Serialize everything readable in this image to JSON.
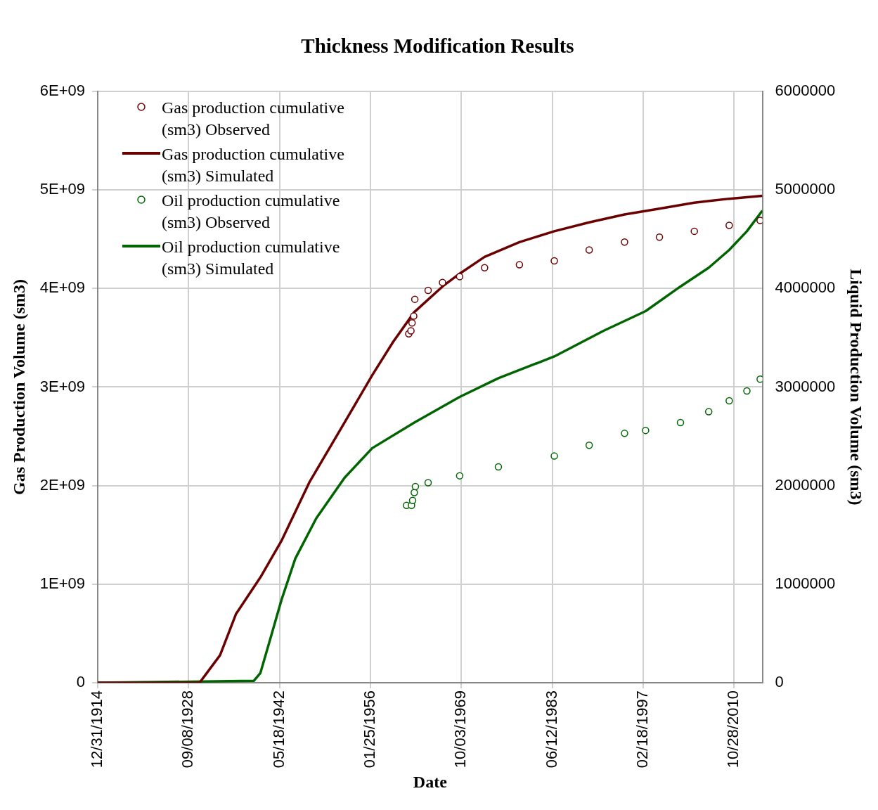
{
  "chart_data": {
    "type": "line",
    "title": "Thickness Modification Results",
    "xlabel": "Date",
    "ylabel": "Gas Production Volume (sm3)",
    "y2label": "Liquid Production Volume (sm3)",
    "xlim": [
      "1914-12-31",
      "2015-02"
    ],
    "xticks": [
      {
        "value": "1914-12-31",
        "label": "12/31/1914"
      },
      {
        "value": "1928-09-08",
        "label": "09/08/1928"
      },
      {
        "value": "1942-05-18",
        "label": "05/18/1942"
      },
      {
        "value": "1956-01-25",
        "label": "01/25/1956"
      },
      {
        "value": "1969-10-03",
        "label": "10/03/1969"
      },
      {
        "value": "1983-06-12",
        "label": "06/12/1983"
      },
      {
        "value": "1997-02-18",
        "label": "02/18/1997"
      },
      {
        "value": "2010-10-28",
        "label": "10/28/2010"
      }
    ],
    "ylim": [
      0,
      6000000000
    ],
    "yticks": [
      0,
      {
        "value": 1000000000,
        "label": "1E+09"
      },
      {
        "value": 2000000000,
        "label": "2E+09"
      },
      {
        "value": 3000000000,
        "label": "3E+09"
      },
      {
        "value": 4000000000,
        "label": "4E+09"
      },
      {
        "value": 5000000000,
        "label": "5E+09"
      },
      {
        "value": 6000000000,
        "label": "6E+09"
      }
    ],
    "y2lim": [
      0,
      6000000
    ],
    "y2ticks": [
      0,
      1000000,
      2000000,
      3000000,
      4000000,
      5000000,
      6000000
    ],
    "grid": true,
    "legend": "top left",
    "series": [
      {
        "name": "Gas production cumulative (sm3) Observed",
        "type": "scatter",
        "marker": "circle",
        "color": "#6b0000",
        "x": [
          "1961-11",
          "1962-03",
          "1962-05",
          "1962-08",
          "1962-10",
          "1964-10",
          "1966-12",
          "1969-07",
          "1973-04",
          "1978-07",
          "1983-10",
          "1989-01",
          "1994-05",
          "1999-08",
          "2004-11",
          "2010-02",
          "2014-10"
        ],
        "values": [
          3540000000,
          3570000000,
          3650000000,
          3720000000,
          3890000000,
          3980000000,
          4060000000,
          4120000000,
          4210000000,
          4240000000,
          4280000000,
          4390000000,
          4470000000,
          4520000000,
          4580000000,
          4640000000,
          4690000000
        ]
      },
      {
        "name": "Gas production cumulative (sm3) Simulated",
        "marker": "none",
        "color": "#6b0000",
        "x": [
          "1914-12-31",
          "1930-05",
          "1933-06",
          "1935-11",
          "1939-07",
          "1942-09",
          "1946-12",
          "1952-03",
          "1956-05",
          "1959-07",
          "1962-09",
          "1966-12",
          "1969-07",
          "1973-04",
          "1978-07",
          "1983-10",
          "1989-01",
          "1994-05",
          "1999-08",
          "2004-11",
          "2010-02",
          "2015-02"
        ],
        "values": [
          0,
          0,
          280000000,
          700000000,
          1070000000,
          1440000000,
          2040000000,
          2640000000,
          3120000000,
          3460000000,
          3760000000,
          4020000000,
          4150000000,
          4320000000,
          4470000000,
          4580000000,
          4670000000,
          4750000000,
          4810000000,
          4870000000,
          4910000000,
          4940000000
        ]
      },
      {
        "name": "Oil production cumulative (sm3) Observed",
        "type": "scatter",
        "marker": "circle",
        "axis": "y2",
        "color": "#006400",
        "x": [
          "1961-07",
          "1962-04",
          "1962-06",
          "1962-09",
          "1962-11",
          "1964-10",
          "1969-07",
          "1975-05",
          "1983-10",
          "1989-01",
          "1994-05",
          "1997-07",
          "2002-10",
          "2007-01",
          "2010-02",
          "2012-10",
          "2014-10"
        ],
        "values": [
          1800000,
          1800000,
          1850000,
          1930000,
          1990000,
          2030000,
          2100000,
          2190000,
          2300000,
          2410000,
          2530000,
          2560000,
          2640000,
          2750000,
          2860000,
          2960000,
          3080000
        ]
      },
      {
        "name": "Oil production cumulative (sm3) Simulated",
        "marker": "none",
        "axis": "y2",
        "color": "#006400",
        "x": [
          "1914-12-31",
          "1938-07",
          "1939-07",
          "1941-02",
          "1942-09",
          "1944-10",
          "1947-12",
          "1952-03",
          "1956-05",
          "1962-09",
          "1969-07",
          "1975-05",
          "1983-10",
          "1991-03",
          "1997-07",
          "2002-10",
          "2007-01",
          "2010-02",
          "2012-10",
          "2015-02"
        ],
        "values": [
          0,
          20000,
          100000,
          470000,
          840000,
          1260000,
          1670000,
          2080000,
          2380000,
          2640000,
          2900000,
          3090000,
          3310000,
          3570000,
          3770000,
          4020000,
          4210000,
          4390000,
          4580000,
          4790000
        ]
      }
    ]
  }
}
